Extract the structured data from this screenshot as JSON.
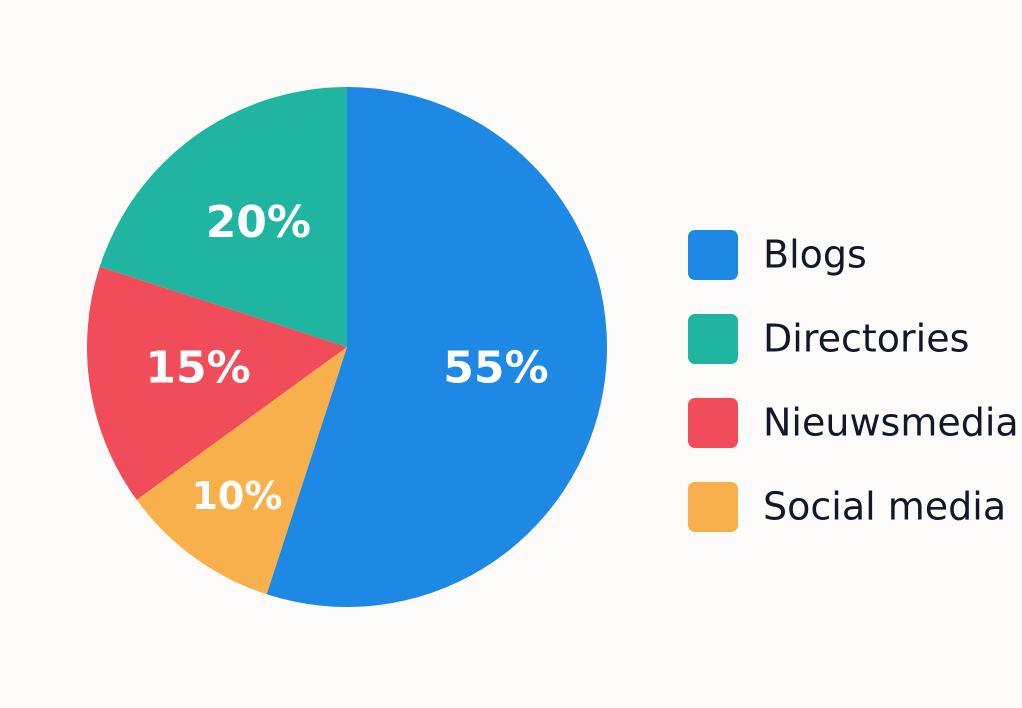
{
  "chart_data": {
    "type": "pie",
    "categories": [
      "Blogs",
      "Directories",
      "Nieuwsmedia",
      "Social media"
    ],
    "values": [
      55,
      20,
      15,
      10
    ],
    "value_labels": [
      "55%",
      "20%",
      "15%",
      "10%"
    ],
    "colors": [
      "#1e88e5",
      "#1fb5a0",
      "#f04c5a",
      "#f7b04b"
    ],
    "legend": "right"
  }
}
